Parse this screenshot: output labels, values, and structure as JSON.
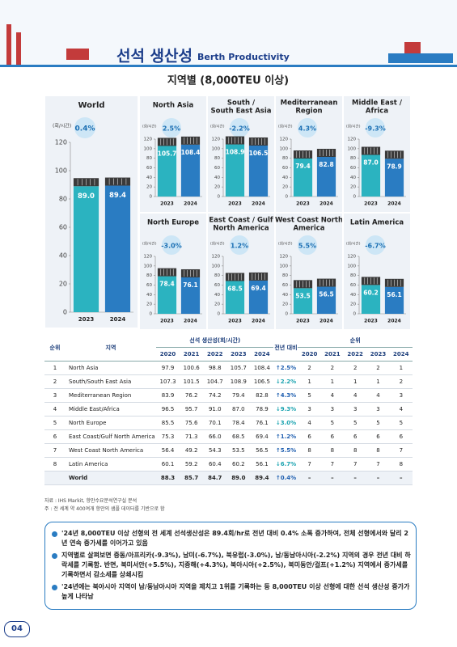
{
  "header": {
    "title": "선석 생산성",
    "subtitle": "Berth Productivity",
    "section": "지역별 (8,000TEU 이상)"
  },
  "chart_data": [
    {
      "type": "bar",
      "title": [
        "World"
      ],
      "change": "0.4%",
      "y_label": "(회/시간)",
      "categories": [
        "2023",
        "2024"
      ],
      "values": [
        89.0,
        89.4
      ],
      "value_labels": [
        "89.0",
        "89.4"
      ],
      "colors": [
        "#2bb3c0",
        "#2a7cc2"
      ],
      "ylim": [
        0,
        120
      ],
      "yticks": [
        0,
        20,
        40,
        60,
        80,
        100,
        120
      ]
    },
    {
      "type": "bar",
      "title": [
        "North Asia"
      ],
      "change": "2.5%",
      "y_label": "(회/시간)",
      "categories": [
        "2023",
        "2024"
      ],
      "values": [
        105.7,
        108.4
      ],
      "value_labels": [
        "105.7",
        "108.4"
      ],
      "colors": [
        "#2bb3c0",
        "#2a7cc2"
      ],
      "ylim": [
        0,
        120
      ],
      "yticks": [
        0,
        20,
        40,
        60,
        80,
        100,
        120
      ]
    },
    {
      "type": "bar",
      "title": [
        "South /",
        "South East Asia"
      ],
      "change": "-2.2%",
      "y_label": "(회/시간)",
      "categories": [
        "2023",
        "2024"
      ],
      "values": [
        108.9,
        106.5
      ],
      "value_labels": [
        "108.9",
        "106.5"
      ],
      "colors": [
        "#2bb3c0",
        "#2a7cc2"
      ],
      "ylim": [
        0,
        120
      ],
      "yticks": [
        0,
        20,
        40,
        60,
        80,
        100,
        120
      ]
    },
    {
      "type": "bar",
      "title": [
        "Mediterranean",
        "Region"
      ],
      "change": "4.3%",
      "y_label": "(회/시간)",
      "categories": [
        "2023",
        "2024"
      ],
      "values": [
        79.4,
        82.8
      ],
      "value_labels": [
        "79.4",
        "82.8"
      ],
      "colors": [
        "#2bb3c0",
        "#2a7cc2"
      ],
      "ylim": [
        0,
        120
      ],
      "yticks": [
        0,
        20,
        40,
        60,
        80,
        100,
        120
      ]
    },
    {
      "type": "bar",
      "title": [
        "Middle East /",
        "Africa"
      ],
      "change": "-9.3%",
      "y_label": "(회/시간)",
      "categories": [
        "2023",
        "2024"
      ],
      "values": [
        87.0,
        78.9
      ],
      "value_labels": [
        "87.0",
        "78.9"
      ],
      "colors": [
        "#2bb3c0",
        "#2a7cc2"
      ],
      "ylim": [
        0,
        120
      ],
      "yticks": [
        0,
        20,
        40,
        60,
        80,
        100,
        120
      ]
    },
    {
      "type": "bar",
      "title": [
        "North Europe"
      ],
      "change": "-3.0%",
      "y_label": "(회/시간)",
      "categories": [
        "2023",
        "2024"
      ],
      "values": [
        78.4,
        76.1
      ],
      "value_labels": [
        "78.4",
        "76.1"
      ],
      "colors": [
        "#2bb3c0",
        "#2a7cc2"
      ],
      "ylim": [
        0,
        120
      ],
      "yticks": [
        0,
        20,
        40,
        60,
        80,
        100,
        120
      ]
    },
    {
      "type": "bar",
      "title": [
        "East Coast / Gulf",
        "North America"
      ],
      "change": "1.2%",
      "y_label": "(회/시간)",
      "categories": [
        "2023",
        "2024"
      ],
      "values": [
        68.5,
        69.4
      ],
      "value_labels": [
        "68.5",
        "69.4"
      ],
      "colors": [
        "#2bb3c0",
        "#2a7cc2"
      ],
      "ylim": [
        0,
        120
      ],
      "yticks": [
        0,
        20,
        40,
        60,
        80,
        100,
        120
      ]
    },
    {
      "type": "bar",
      "title": [
        "West Coast North",
        "America"
      ],
      "change": "5.5%",
      "y_label": "(회/시간)",
      "categories": [
        "2023",
        "2024"
      ],
      "values": [
        53.5,
        56.5
      ],
      "value_labels": [
        "53.5",
        "56.5"
      ],
      "colors": [
        "#2bb3c0",
        "#2a7cc2"
      ],
      "ylim": [
        0,
        120
      ],
      "yticks": [
        0,
        20,
        40,
        60,
        80,
        100,
        120
      ]
    },
    {
      "type": "bar",
      "title": [
        "Latin America"
      ],
      "change": "-6.7%",
      "y_label": "(회/시간)",
      "categories": [
        "2023",
        "2024"
      ],
      "values": [
        60.2,
        56.1
      ],
      "value_labels": [
        "60.2",
        "56.1"
      ],
      "colors": [
        "#2bb3c0",
        "#2a7cc2"
      ],
      "ylim": [
        0,
        120
      ],
      "yticks": [
        0,
        20,
        40,
        60,
        80,
        100,
        120
      ]
    }
  ],
  "table": {
    "head": [
      "순위",
      "지역",
      "선석 생산성(회/시간)",
      "전년 대비",
      "순위"
    ],
    "years": [
      "2020",
      "2021",
      "2022",
      "2023",
      "2024"
    ],
    "rows": [
      [
        "1",
        "North Asia",
        "97.9",
        "100.6",
        "98.8",
        "105.7",
        "108.4",
        "↑2.5%",
        "2",
        "2",
        "2",
        "2",
        "1"
      ],
      [
        "2",
        "South/South East Asia",
        "107.3",
        "101.5",
        "104.7",
        "108.9",
        "106.5",
        "↓2.2%",
        "1",
        "1",
        "1",
        "1",
        "2"
      ],
      [
        "3",
        "Mediterranean Region",
        "83.9",
        "76.2",
        "74.2",
        "79.4",
        "82.8",
        "↑4.3%",
        "5",
        "4",
        "4",
        "4",
        "3"
      ],
      [
        "4",
        "Middle East/Africa",
        "96.5",
        "95.7",
        "91.0",
        "87.0",
        "78.9",
        "↓9.3%",
        "3",
        "3",
        "3",
        "3",
        "4"
      ],
      [
        "5",
        "North Europe",
        "85.5",
        "75.6",
        "70.1",
        "78.4",
        "76.1",
        "↓3.0%",
        "4",
        "5",
        "5",
        "5",
        "5"
      ],
      [
        "6",
        "East Coast/Gulf North America",
        "75.3",
        "71.3",
        "66.0",
        "68.5",
        "69.4",
        "↑1.2%",
        "6",
        "6",
        "6",
        "6",
        "6"
      ],
      [
        "7",
        "West Coast North America",
        "56.4",
        "49.2",
        "54.3",
        "53.5",
        "56.5",
        "↑5.5%",
        "8",
        "8",
        "8",
        "8",
        "7"
      ],
      [
        "8",
        "Latin America",
        "60.1",
        "59.2",
        "60.4",
        "60.2",
        "56.1",
        "↓6.7%",
        "7",
        "7",
        "7",
        "7",
        "8"
      ],
      [
        "",
        "World",
        "88.3",
        "85.7",
        "84.7",
        "89.0",
        "89.4",
        "↑0.4%",
        "–",
        "–",
        "–",
        "–",
        "–"
      ]
    ]
  },
  "notes": [
    "자료 : IHS Markit, 항만수요분석연구실 분석",
    "주 : 전 세계 약 400여개 항만의 샘플 데이터를 기반으로 함"
  ],
  "bullets": [
    "'24년 8,000TEU 이상 선형의 전 세계 선석생산성은 89.4회/hr로 전년 대비 0.4% 소폭 증가하여, 전체 선형에서와 달리 2년 연속 증가세를 이어가고 있음",
    "지역별로 살펴보면 중동/아프리카(-9.3%), 남미(-6.7%), 북유럽(-3.0%), 남/동남아시아(-2.2%) 지역의 경우 전년 대비 하락세를 기록함. 반면, 북미서안(+5.5%), 지중해(+4.3%), 북아시아(+2.5%), 북미동안/걸프(+1.2%) 지역에서 증가세를 기록하면서 감소세를 상쇄시킴",
    "'24년에는 북아시아 지역이 남/동남아시아 지역을 제치고 1위를 기록하는 등 8,000TEU 이상 선형에 대한 선석 생산성 증가가 높게 나타남"
  ],
  "page": "04"
}
